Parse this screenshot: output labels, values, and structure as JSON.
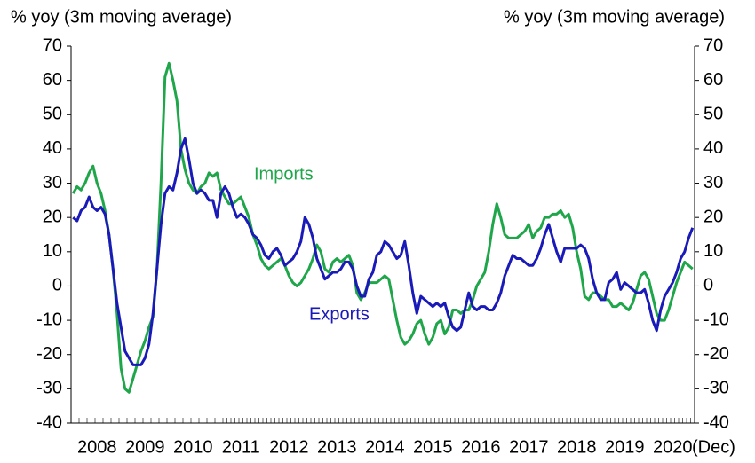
{
  "chart_data": {
    "type": "line",
    "ylabel": "% yoy (3m moving average)",
    "y2label": "% yoy (3m moving average)",
    "x_note": "(Dec)",
    "ylim": [
      -40,
      70
    ],
    "yticks": [
      -40,
      -30,
      -20,
      -10,
      0,
      10,
      20,
      30,
      40,
      50,
      60,
      70
    ],
    "y2lim": [
      -40,
      70
    ],
    "y2ticks": [
      -40,
      -30,
      -20,
      -10,
      0,
      10,
      20,
      30,
      40,
      50,
      60,
      70
    ],
    "categories": [
      null,
      null,
      null,
      null,
      null,
      null,
      "2008",
      null,
      null,
      null,
      null,
      null,
      null,
      null,
      null,
      null,
      null,
      null,
      "2009",
      null,
      null,
      null,
      null,
      null,
      null,
      null,
      null,
      null,
      null,
      null,
      "2010",
      null,
      null,
      null,
      null,
      null,
      null,
      null,
      null,
      null,
      null,
      null,
      "2011",
      null,
      null,
      null,
      null,
      null,
      null,
      null,
      null,
      null,
      null,
      null,
      "2012",
      null,
      null,
      null,
      null,
      null,
      null,
      null,
      null,
      null,
      null,
      null,
      "2013",
      null,
      null,
      null,
      null,
      null,
      null,
      null,
      null,
      null,
      null,
      null,
      "2014",
      null,
      null,
      null,
      null,
      null,
      null,
      null,
      null,
      null,
      null,
      null,
      "2015",
      null,
      null,
      null,
      null,
      null,
      null,
      null,
      null,
      null,
      null,
      null,
      "2016",
      null,
      null,
      null,
      null,
      null,
      null,
      null,
      null,
      null,
      null,
      null,
      "2017",
      null,
      null,
      null,
      null,
      null,
      null,
      null,
      null,
      null,
      null,
      null,
      "2018",
      null,
      null,
      null,
      null,
      null,
      null,
      null,
      null,
      null,
      null,
      null,
      "2019",
      null,
      null,
      null,
      null,
      null,
      null,
      null,
      null,
      null,
      null,
      null,
      "2020",
      null,
      null,
      null,
      null,
      null
    ],
    "series": [
      {
        "name": "Imports",
        "color": "#1fa64a",
        "values": [
          27,
          29,
          28,
          30,
          33,
          35,
          30,
          27,
          22,
          15,
          5,
          -8,
          -24,
          -30,
          -31,
          -27,
          -23,
          -19,
          -16,
          -12,
          -9,
          5,
          30,
          61,
          65,
          60,
          54,
          40,
          34,
          30,
          28,
          27,
          29,
          30,
          33,
          32,
          33,
          28,
          26,
          24,
          24,
          25,
          26,
          23,
          20,
          15,
          12,
          8,
          6,
          5,
          6,
          7,
          8,
          6,
          3,
          1,
          0,
          1,
          3,
          5,
          8,
          12,
          10,
          5,
          4,
          7,
          8,
          7,
          8,
          9,
          6,
          -2,
          -4,
          -2,
          1,
          1,
          1,
          2,
          3,
          2,
          -4,
          -10,
          -15,
          -17,
          -16,
          -14,
          -11,
          -10,
          -14,
          -17,
          -15,
          -11,
          -10,
          -14,
          -12,
          -7,
          -7,
          -8,
          -7,
          -7,
          -4,
          0,
          2,
          4,
          10,
          18,
          24,
          20,
          15,
          14,
          14,
          14,
          15,
          16,
          18,
          14,
          16,
          17,
          20,
          20,
          21,
          21,
          22,
          20,
          21,
          17,
          10,
          5,
          -3,
          -4,
          -2,
          -2,
          -3,
          -4,
          -4,
          -6,
          -6,
          -5,
          -6,
          -7,
          -5,
          -1,
          3,
          4,
          2,
          -3,
          -8,
          -10,
          -10,
          -7,
          -3,
          1,
          4,
          7,
          6,
          5
        ]
      },
      {
        "name": "Exports",
        "color": "#1a1ab8",
        "values": [
          20,
          19,
          22,
          23,
          26,
          23,
          22,
          23,
          21,
          15,
          5,
          -5,
          -12,
          -19,
          -21,
          -23,
          -23,
          -23,
          -21,
          -17,
          -8,
          5,
          18,
          27,
          29,
          28,
          33,
          40,
          43,
          37,
          30,
          27,
          28,
          27,
          25,
          25,
          20,
          27,
          29,
          27,
          23,
          20,
          21,
          20,
          18,
          15,
          14,
          12,
          9,
          8,
          10,
          11,
          9,
          6,
          7,
          8,
          10,
          13,
          20,
          18,
          14,
          8,
          5,
          2,
          3,
          4,
          4,
          5,
          7,
          7,
          5,
          0,
          -3,
          -3,
          2,
          4,
          9,
          10,
          13,
          12,
          10,
          8,
          9,
          13,
          6,
          -2,
          -8,
          -3,
          -4,
          -5,
          -6,
          -5,
          -6,
          -5,
          -9,
          -12,
          -13,
          -12,
          -7,
          -2,
          -6,
          -7,
          -6,
          -6,
          -7,
          -7,
          -5,
          -2,
          3,
          6,
          9,
          8,
          8,
          7,
          6,
          6,
          8,
          11,
          15,
          18,
          14,
          10,
          7,
          11,
          11,
          11,
          11,
          12,
          11,
          8,
          2,
          -2,
          -4,
          -4,
          1,
          2,
          4,
          -1,
          1,
          0,
          -1,
          -2,
          -2,
          -1,
          -5,
          -10,
          -13,
          -7,
          -3,
          -1,
          1,
          4,
          8,
          10,
          14,
          17
        ]
      }
    ]
  }
}
